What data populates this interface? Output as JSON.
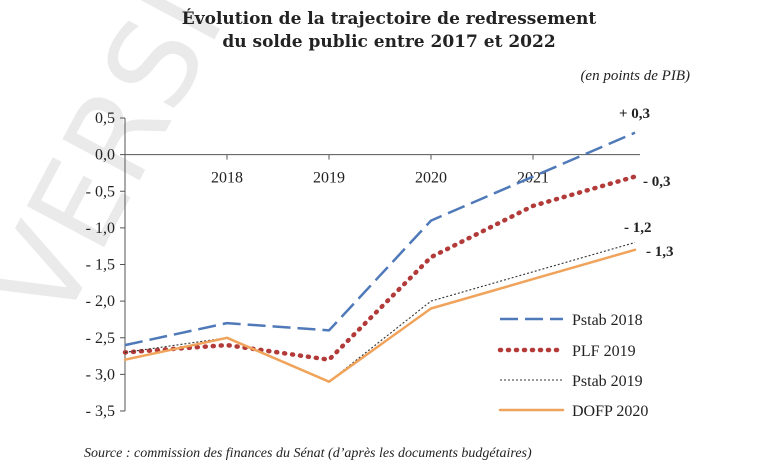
{
  "chart_data": {
    "type": "line",
    "title_lines": [
      "Évolution de la trajectoire de redressement",
      "du solde public entre 2017 et 2022"
    ],
    "unit": "(en points de PIB)",
    "x": [
      "2017",
      "2018",
      "2019",
      "2020",
      "2021",
      "2022"
    ],
    "x_tick_labels": [
      "2018",
      "2019",
      "2020",
      "2021"
    ],
    "ylim": [
      -3.5,
      0.5
    ],
    "y_tick_labels": [
      "0,5",
      "0,0",
      "- 0,5",
      "- 1,0",
      "- 1,5",
      "- 2,0",
      "- 2,5",
      "- 3,0",
      "- 3,5"
    ],
    "grid": false,
    "legend_position": "bottom-right",
    "series": [
      {
        "name": "Pstab 2018",
        "values": [
          -2.6,
          -2.3,
          -2.4,
          -0.9,
          -0.3,
          0.3
        ],
        "color": "#4f79b8",
        "style": "dash",
        "end_label": "+ 0,3"
      },
      {
        "name": "PLF 2019",
        "values": [
          -2.7,
          -2.6,
          -2.8,
          -1.4,
          -0.7,
          -0.3
        ],
        "color": "#b23a38",
        "style": "dot",
        "end_label": "- 0,3"
      },
      {
        "name": "Pstab 2019",
        "values": [
          -2.7,
          -2.5,
          -3.1,
          -2.0,
          -1.6,
          -1.2
        ],
        "color": "#333333",
        "style": "fine-dot",
        "end_label": "- 1,2"
      },
      {
        "name": "DOFP 2020",
        "values": [
          -2.8,
          -2.5,
          -3.1,
          -2.1,
          -1.7,
          -1.3
        ],
        "color": "#f0a35a",
        "style": "solid",
        "end_label": "- 1,3"
      }
    ],
    "source": "Source : commission des finances du Sénat (d’après les documents budgétaires)",
    "watermark": "VERSION"
  }
}
